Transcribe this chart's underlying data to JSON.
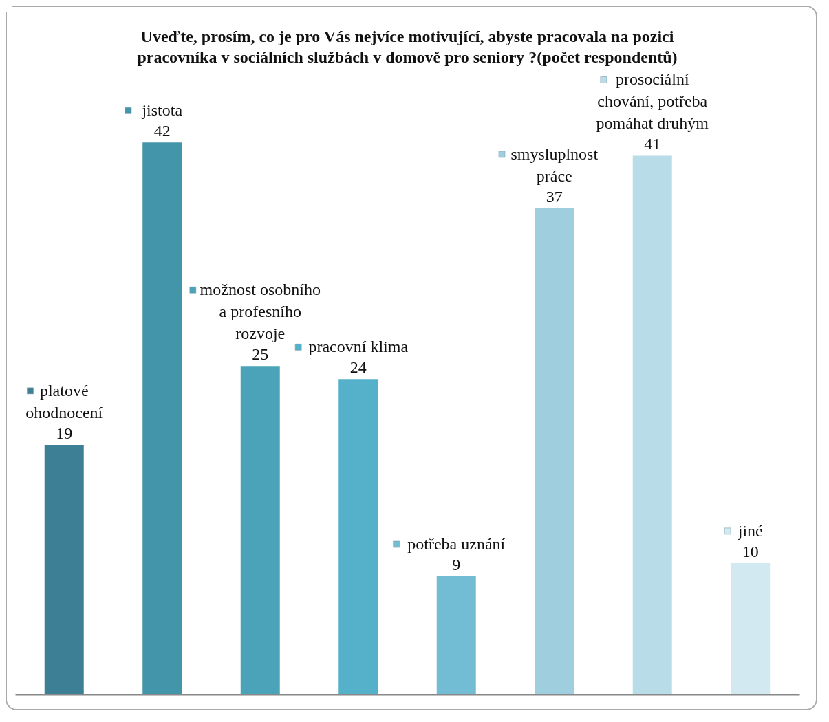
{
  "chart_data": {
    "type": "bar",
    "title": "Uveďte, prosím, co je pro Vás nejvíce motivující, abyste pracovala na pozici pracovníka v sociálních službách v domově pro seniory ?(počet respondentů)",
    "categories": [
      "platové ohodnocení",
      "jistota",
      "možnost osobního a profesního rozvoje",
      "pracovní klima",
      "potřeba uznání",
      "smysluplnost práce",
      "prosociální chování, potřeba pomáhat druhým",
      "jiné"
    ],
    "values": [
      19,
      42,
      25,
      24,
      9,
      37,
      41,
      10
    ],
    "colors": [
      "#3d7f95",
      "#4396a9",
      "#4aa3b8",
      "#55b1c9",
      "#72bdd3",
      "#9fcfdf",
      "#b8dde8",
      "#d3e9f1"
    ],
    "data_labels": true,
    "tick_labels": false,
    "grid": false
  }
}
